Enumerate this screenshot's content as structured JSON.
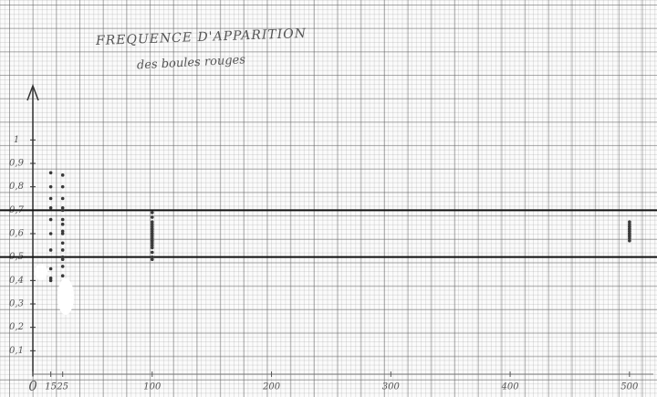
{
  "chart_data": {
    "type": "scatter",
    "title": "FREQUENCE D'APPARITION",
    "subtitle": "des boules rouges",
    "x": [
      15,
      15,
      15,
      15,
      15,
      15,
      15,
      15,
      15,
      15,
      25,
      25,
      25,
      25,
      25,
      25,
      25,
      25,
      25,
      25,
      25,
      25,
      25,
      25,
      25,
      100,
      100,
      100,
      100,
      100,
      100,
      100,
      100,
      100,
      100,
      100,
      100,
      100,
      100,
      100,
      100,
      100,
      100,
      100,
      100,
      500,
      500,
      500,
      500,
      500,
      500,
      500,
      500,
      500,
      500,
      500,
      500,
      500,
      500
    ],
    "values": [
      0.86,
      0.8,
      0.75,
      0.71,
      0.66,
      0.6,
      0.53,
      0.45,
      0.41,
      0.4,
      0.85,
      0.8,
      0.75,
      0.71,
      0.7,
      0.66,
      0.64,
      0.61,
      0.6,
      0.56,
      0.53,
      0.5,
      0.49,
      0.46,
      0.42,
      0.69,
      0.67,
      0.65,
      0.64,
      0.63,
      0.62,
      0.62,
      0.61,
      0.6,
      0.6,
      0.59,
      0.58,
      0.57,
      0.57,
      0.56,
      0.55,
      0.54,
      0.52,
      0.5,
      0.49,
      0.65,
      0.64,
      0.63,
      0.63,
      0.62,
      0.62,
      0.61,
      0.61,
      0.6,
      0.6,
      0.59,
      0.59,
      0.58,
      0.57
    ],
    "color": "#3a3a3a",
    "hlines": [
      0.7,
      0.5
    ],
    "xlim": [
      0,
      520
    ],
    "ylim": [
      0,
      1.2
    ],
    "xticks": [
      0,
      15,
      25,
      100,
      200,
      300,
      400,
      500
    ],
    "yticks": [
      {
        "value": 0.1,
        "label": "0,1"
      },
      {
        "value": 0.2,
        "label": "0,2"
      },
      {
        "value": 0.3,
        "label": "0,3"
      },
      {
        "value": 0.4,
        "label": "0,4"
      },
      {
        "value": 0.5,
        "label": "0,5"
      },
      {
        "value": 0.6,
        "label": "0,6"
      },
      {
        "value": 0.7,
        "label": "0,7"
      },
      {
        "value": 0.8,
        "label": "0,8"
      },
      {
        "value": 0.9,
        "label": "0,9"
      },
      1
    ]
  }
}
